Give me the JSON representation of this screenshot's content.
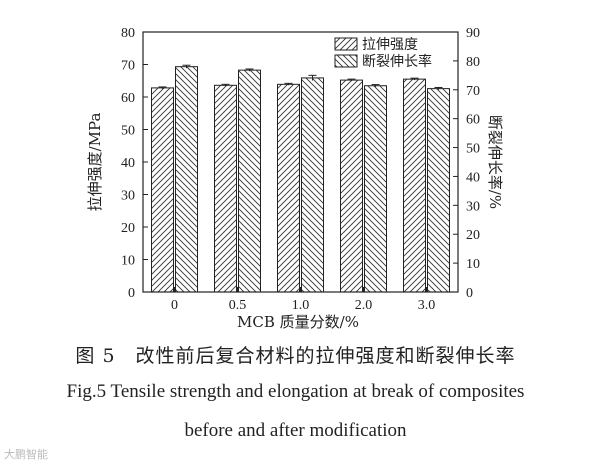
{
  "chart_data": {
    "type": "bar",
    "categories": [
      "0",
      "0.5",
      "1.0",
      "2.0",
      "3.0"
    ],
    "series": [
      {
        "name": "拉伸强度",
        "axis": "left",
        "values": [
          62.8,
          63.6,
          63.9,
          65.2,
          65.5
        ],
        "errors": [
          0.3,
          0.3,
          0.3,
          0.3,
          0.3
        ],
        "hatch": "diagonal-up"
      },
      {
        "name": "断裂伸长率",
        "axis": "right",
        "values": [
          78.0,
          76.8,
          74.1,
          71.4,
          70.4
        ],
        "errors": [
          0.5,
          0.4,
          0.9,
          0.4,
          0.4
        ],
        "hatch": "diagonal-down"
      }
    ],
    "xlabel": "MCB 质量分数/%",
    "ylabel": "拉伸强度/MPa",
    "ylabel_right": "断裂伸长率/%",
    "ylim": [
      0,
      80
    ],
    "ylim_right": [
      0,
      90
    ],
    "yticks": [
      0,
      10,
      20,
      30,
      40,
      50,
      60,
      70,
      80
    ],
    "yticks_right": [
      0,
      10,
      20,
      30,
      40,
      50,
      60,
      70,
      80,
      90
    ],
    "legend_position": "top-right",
    "grid": false
  },
  "caption": {
    "zh": "图 5　改性前后复合材料的拉伸强度和断裂伸长率",
    "en_line1": "Fig.5 Tensile strength and elongation at break of composites",
    "en_line2": "before and after modification"
  },
  "watermark": "大鹏智能"
}
